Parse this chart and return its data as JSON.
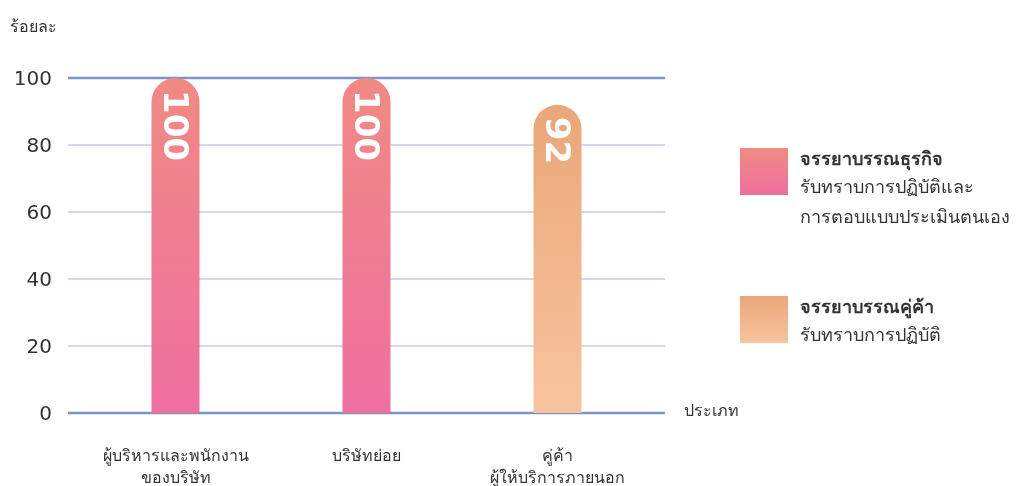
{
  "chart_data": {
    "type": "bar",
    "ylabel": "ร้อยละ",
    "xlabel": "ประเภท",
    "categories": [
      "ผู้บริหารและพนักงาน\nของบริษัท",
      "บริษัทย่อย",
      "คู่ค้า\nผู้ให้บริการภายนอก"
    ],
    "series": [
      {
        "name": "จรรยาบรรณธุรกิจ",
        "color": "#ef6fa0",
        "values": [
          100,
          100,
          null
        ]
      },
      {
        "name": "จรรยาบรรณคู่ค้า",
        "color": "#f6b07f",
        "values": [
          null,
          null,
          92
        ]
      }
    ],
    "annotations": [
      "รับทราบการปฏิบัติและ\nการตอบแบบประเมินตนเอง",
      "รับทราบการปฏิบัติ"
    ],
    "ylim": [
      0,
      100
    ],
    "yticks": [
      0,
      20,
      40,
      60,
      80,
      100
    ],
    "grid": "y",
    "legend": "right",
    "data_labels": true
  }
}
